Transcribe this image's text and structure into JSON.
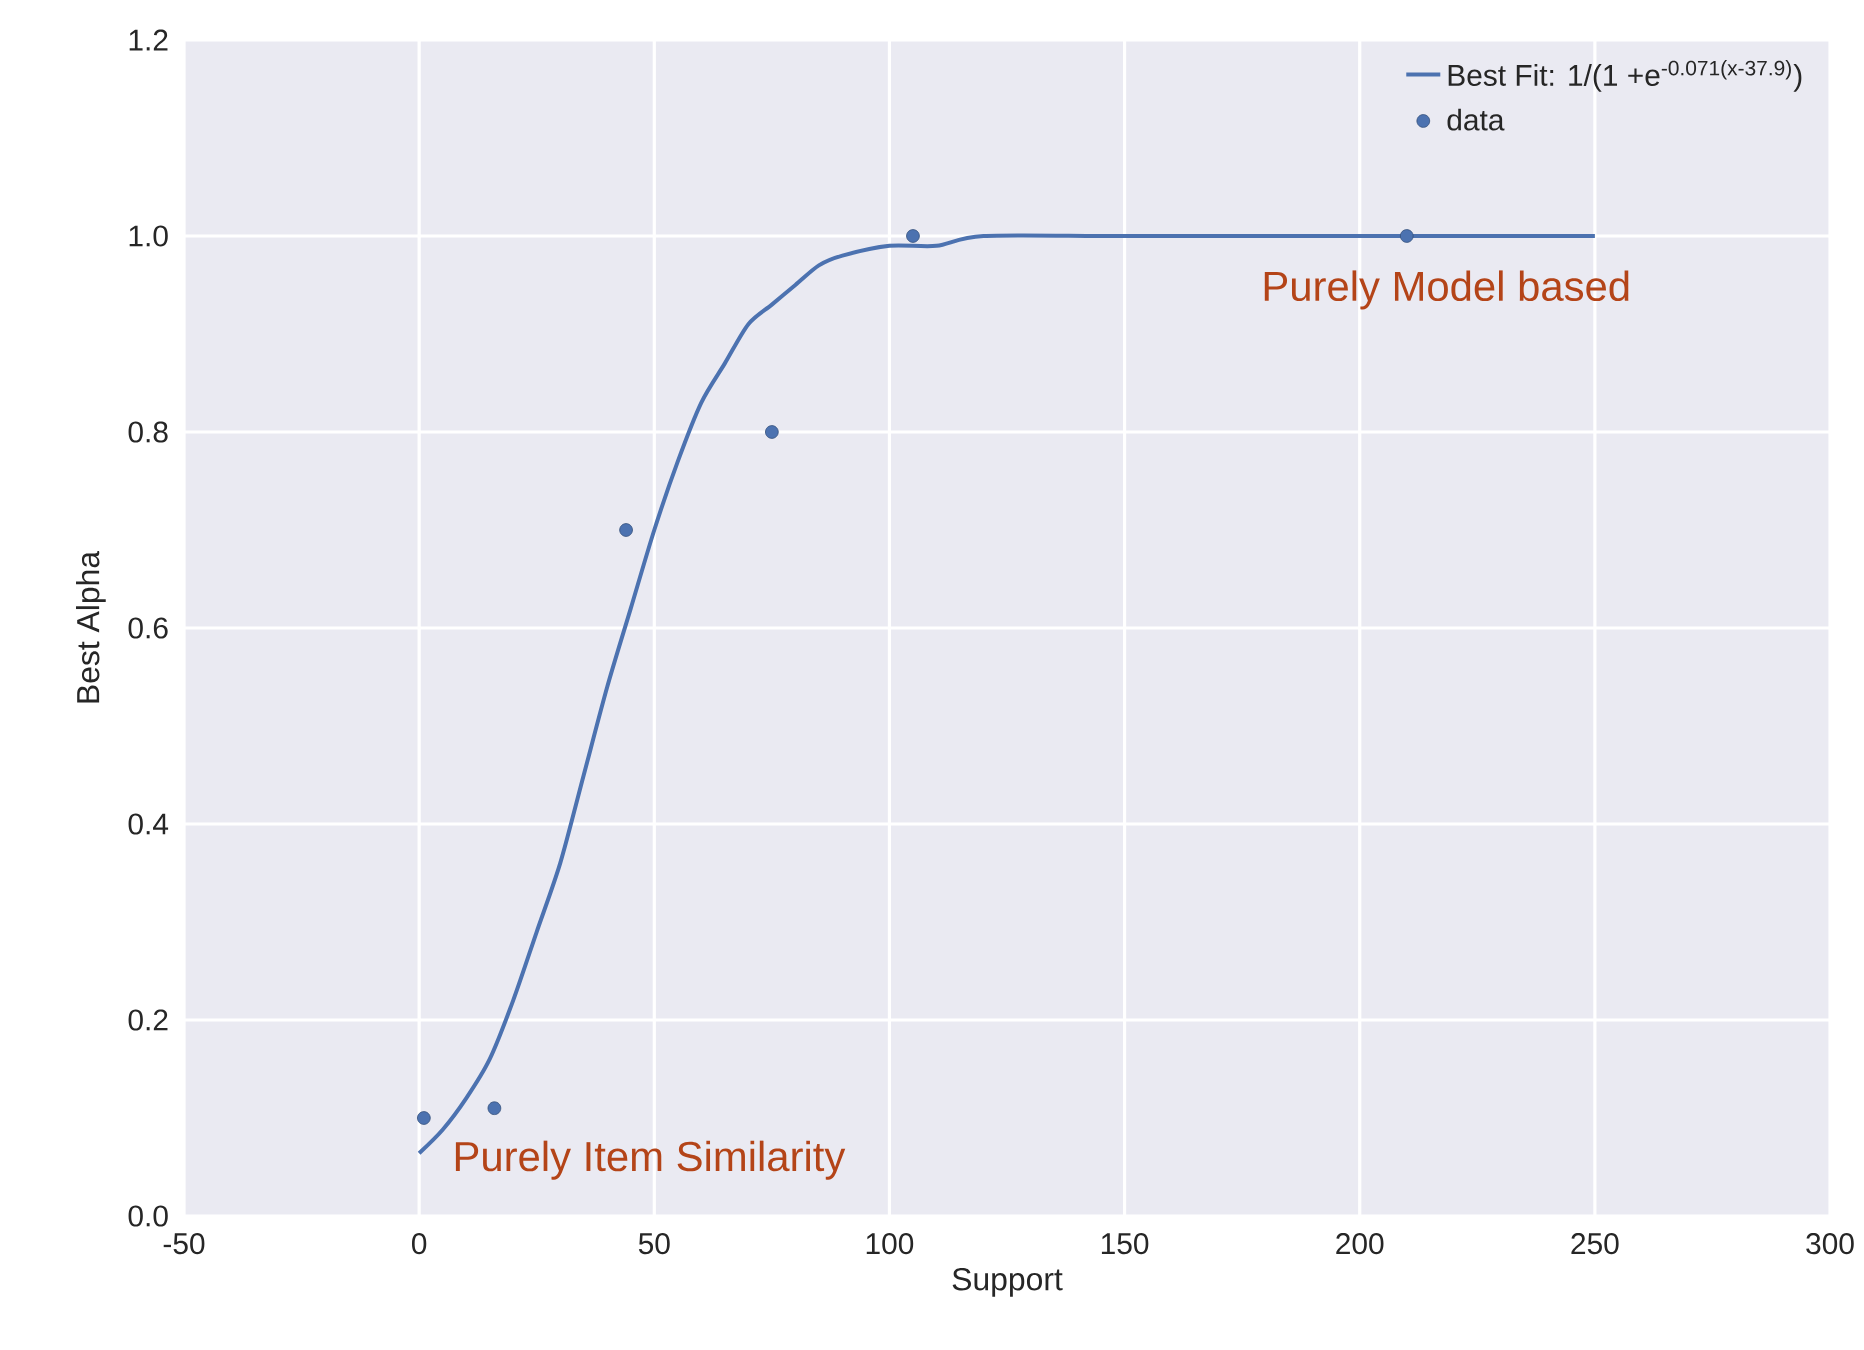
{
  "chart_data": {
    "type": "line",
    "xlabel": "Support",
    "ylabel": "Best Alpha",
    "xlim": [
      -50,
      300
    ],
    "xticks": [
      -50,
      0,
      50,
      100,
      150,
      200,
      250,
      300
    ],
    "ylim": [
      0,
      1.2
    ],
    "yticks": [
      {
        "value": 0,
        "label": "0.0"
      },
      {
        "value": 0.2,
        "label": "0.2"
      },
      {
        "value": 0.4,
        "label": "0.4"
      },
      {
        "value": 0.6,
        "label": "0.6"
      },
      {
        "value": 0.8,
        "label": "0.8"
      },
      {
        "value": 1.0,
        "label": "1.0"
      },
      {
        "value": 1.2,
        "label": "1.2"
      }
    ],
    "grid": true,
    "legend": "top right",
    "series": [
      {
        "name": "Best Fit: 1/(1 +e$^{-0.071(x-37.9)}$)",
        "type": "line",
        "color": "#4c72b0",
        "marker": "none",
        "x": [
          0,
          5,
          10,
          15,
          20,
          25,
          30,
          35,
          40,
          45,
          50,
          55,
          60,
          65,
          70,
          75,
          80,
          85,
          90,
          100,
          110,
          120,
          150,
          200,
          250
        ],
        "values": [
          0.064,
          0.088,
          0.12,
          0.16,
          0.22,
          0.29,
          0.36,
          0.45,
          0.54,
          0.62,
          0.7,
          0.77,
          0.83,
          0.87,
          0.91,
          0.93,
          0.95,
          0.97,
          0.98,
          0.99,
          0.99,
          1.0,
          1.0,
          1.0,
          1.0
        ]
      },
      {
        "name": "data",
        "type": "scatter",
        "color": "#4c72b0",
        "marker": "circle",
        "x": [
          1,
          16,
          44,
          75,
          105,
          210
        ],
        "values": [
          0.1,
          0.11,
          0.7,
          0.8,
          1.0,
          1.0
        ]
      }
    ],
    "annotations": [
      "Purely Item Similarity",
      "Purely Model based"
    ]
  }
}
